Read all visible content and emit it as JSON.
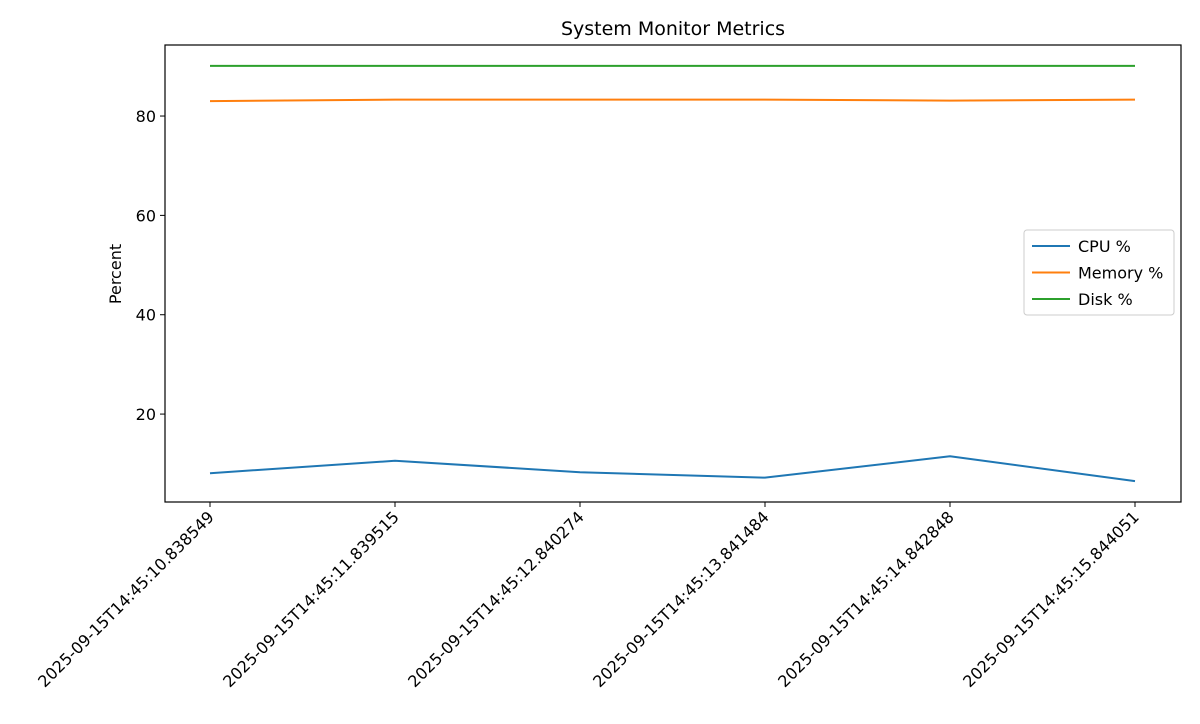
{
  "chart_data": {
    "type": "line",
    "title": "System Monitor Metrics",
    "xlabel": "",
    "ylabel": "Percent",
    "x": [
      "2025-09-15T14:45:10.838549",
      "2025-09-15T14:45:11.839515",
      "2025-09-15T14:45:12.840274",
      "2025-09-15T14:45:13.841484",
      "2025-09-15T14:45:14.842848",
      "2025-09-15T14:45:15.844051"
    ],
    "series": [
      {
        "name": "CPU %",
        "color": "#1f77b4",
        "values": [
          8.1,
          10.6,
          8.3,
          7.2,
          11.5,
          6.5
        ]
      },
      {
        "name": "Memory %",
        "color": "#ff7f0e",
        "values": [
          83.0,
          83.3,
          83.3,
          83.3,
          83.1,
          83.3
        ]
      },
      {
        "name": "Disk %",
        "color": "#2ca02c",
        "values": [
          90.1,
          90.1,
          90.1,
          90.1,
          90.1,
          90.1
        ]
      }
    ],
    "ylim": [
      2.3,
      94.3
    ],
    "yticks": [
      20,
      40,
      60,
      80
    ],
    "grid": false,
    "legend_position": "center-right"
  }
}
